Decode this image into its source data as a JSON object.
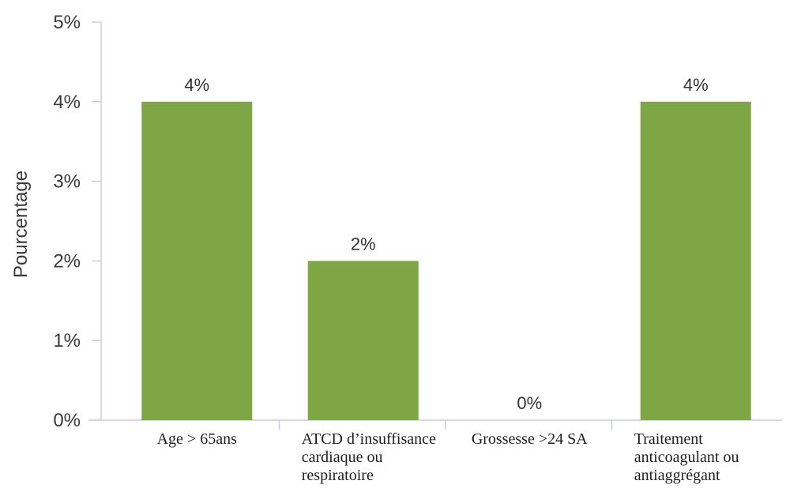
{
  "chart_data": {
    "type": "bar",
    "ylabel": "Pourcentage",
    "ylim": [
      0,
      5
    ],
    "yticks": [
      "0%",
      "1%",
      "2%",
      "3%",
      "4%",
      "5%"
    ],
    "categories": [
      [
        "Age > 65ans"
      ],
      [
        "ATCD d’insuffisance",
        "cardiaque ou",
        "respiratoire"
      ],
      [
        "Grossesse >24 SA"
      ],
      [
        "Traitement",
        "anticoagulant ou",
        "antiaggrégant"
      ]
    ],
    "values": [
      4,
      2,
      0,
      4
    ],
    "value_labels": [
      "4%",
      "2%",
      "0%",
      "4%"
    ],
    "bar_color": "#7ea644",
    "axis_color": "#c9cce6",
    "grid": false,
    "legend": "none"
  }
}
